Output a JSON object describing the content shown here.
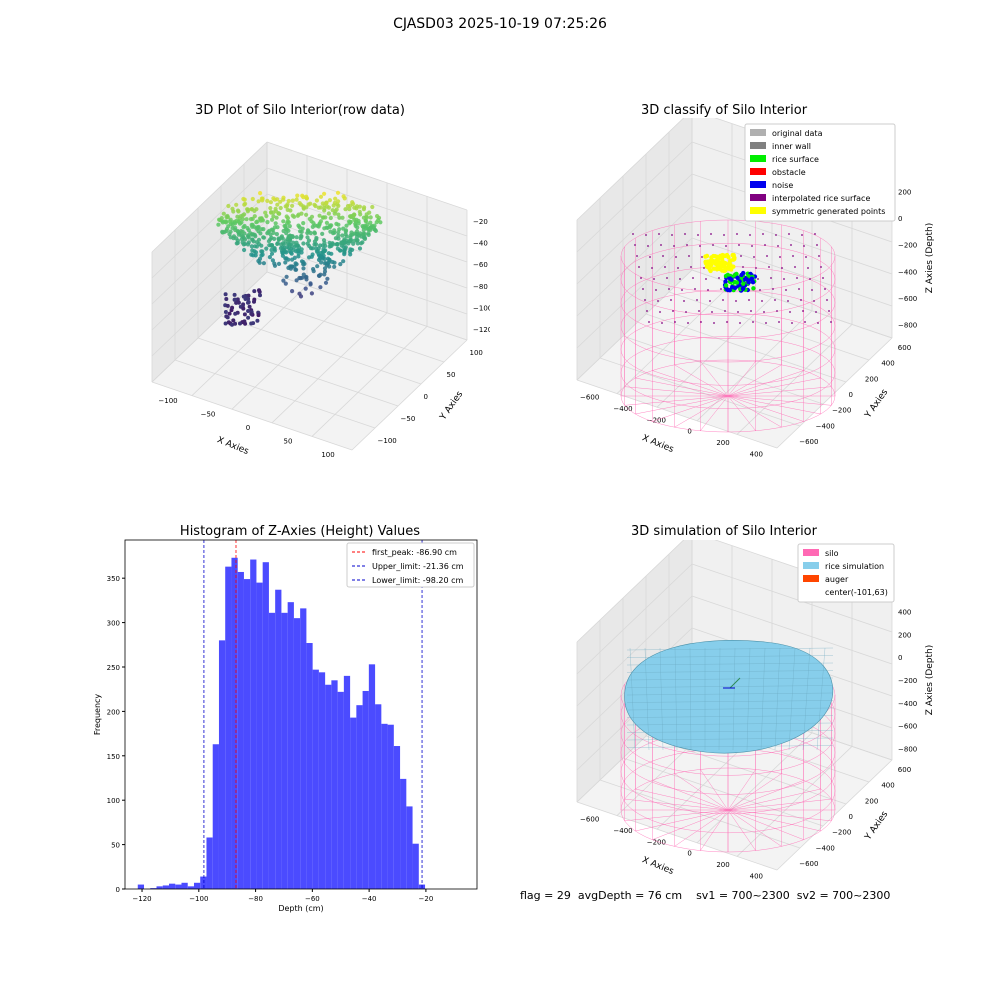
{
  "figure": {
    "title": "CJASD03 2025-10-19 07:25:26"
  },
  "footer": {
    "flag": "flag = 29",
    "avg_depth": "avgDepth = 76 cm",
    "sv1": "sv1 = 700~2300",
    "sv2": "sv2 = 700~2300"
  },
  "chart_data": [
    {
      "type": "scatter",
      "title": "3D Plot of Silo Interior(row data)",
      "xlabel": "X Axies",
      "ylabel": "Y Axies",
      "zlabel": "Z Axies (Depth)",
      "xticks": [
        "−100",
        "−50",
        "0",
        "50",
        "100"
      ],
      "yticks": [
        "−100",
        "−50",
        "0",
        "50",
        "100"
      ],
      "zticks": [
        "−20",
        "−40",
        "−60",
        "−80",
        "−100",
        "−120"
      ],
      "xlim": [
        -110,
        150
      ],
      "ylim": [
        -130,
        120
      ],
      "zlim": [
        -130,
        -5
      ],
      "colormap": "viridis",
      "description_values": {
        "depth_min": -120,
        "depth_max": -15
      }
    },
    {
      "type": "scatter",
      "title": "3D classify of Silo Interior",
      "xlabel": "X Axies",
      "ylabel": "Y Axies",
      "zlabel": "Z Axies (Depth)",
      "xticks": [
        "−600",
        "−400",
        "−200",
        "0",
        "200",
        "400"
      ],
      "yticks": [
        "−600",
        "−400",
        "−200",
        "0",
        "200",
        "400",
        "600"
      ],
      "zticks": [
        "200",
        "0",
        "−200",
        "−400",
        "−600",
        "−800"
      ],
      "legend_position": "top-right",
      "legend": [
        {
          "label": "original data",
          "color": "#b0b0b0"
        },
        {
          "label": "inner wall",
          "color": "#808080"
        },
        {
          "label": "rice surface",
          "color": "#00ee00"
        },
        {
          "label": "obstacle",
          "color": "#ff0000"
        },
        {
          "label": "noise",
          "color": "#0000ee"
        },
        {
          "label": "interpolated rice surface",
          "color": "#800080"
        },
        {
          "label": "symmetric generated points",
          "color": "#ffff00"
        }
      ]
    },
    {
      "type": "bar",
      "title": "Histogram of Z-Axies (Height) Values",
      "xlabel": "Depth (cm)",
      "ylabel": "Frequency",
      "xlim": [
        -126,
        -2
      ],
      "ylim": [
        0,
        393
      ],
      "xticks": [
        -120,
        -100,
        -80,
        -60,
        -40,
        -20
      ],
      "yticks": [
        0,
        50,
        100,
        150,
        200,
        250,
        300,
        350
      ],
      "bar_color": "#4b4bff",
      "bin_start": -121.5,
      "bin_width": 2.2,
      "values": [
        5,
        0,
        1,
        3,
        4,
        6,
        5,
        7,
        3,
        7,
        14,
        58,
        163,
        280,
        363,
        373,
        357,
        349,
        371,
        345,
        368,
        311,
        337,
        311,
        323,
        305,
        316,
        277,
        247,
        244,
        230,
        235,
        222,
        240,
        193,
        207,
        223,
        253,
        208,
        186,
        185,
        161,
        124,
        93,
        51,
        5
      ],
      "lines": [
        {
          "label": "first_peak: -86.90 cm",
          "x": -86.9,
          "color": "#ff0000"
        },
        {
          "label": "Upper_limit: -21.36 cm",
          "x": -21.36,
          "color": "#0000cc"
        },
        {
          "label": "Lower_limit: -98.20 cm",
          "x": -98.2,
          "color": "#0000cc"
        }
      ],
      "legend_position": "top-right"
    },
    {
      "type": "scatter",
      "title": "3D simulation of Silo Interior",
      "xlabel": "X Axies",
      "ylabel": "Y Axies",
      "zlabel": "Z Axies (Depth)",
      "xticks": [
        "−600",
        "−400",
        "−200",
        "0",
        "200",
        "400"
      ],
      "yticks": [
        "−600",
        "−400",
        "−200",
        "0",
        "200",
        "400",
        "600"
      ],
      "zticks": [
        "400",
        "200",
        "0",
        "−200",
        "−400",
        "−600",
        "−800"
      ],
      "legend_position": "top-right",
      "legend": [
        {
          "label": "silo",
          "color": "#ff69b4"
        },
        {
          "label": "rice simulation",
          "color": "#87ceeb"
        },
        {
          "label": "auger",
          "color": "#ff4500"
        },
        {
          "label": "center(-101,63)",
          "color": ""
        }
      ]
    }
  ]
}
